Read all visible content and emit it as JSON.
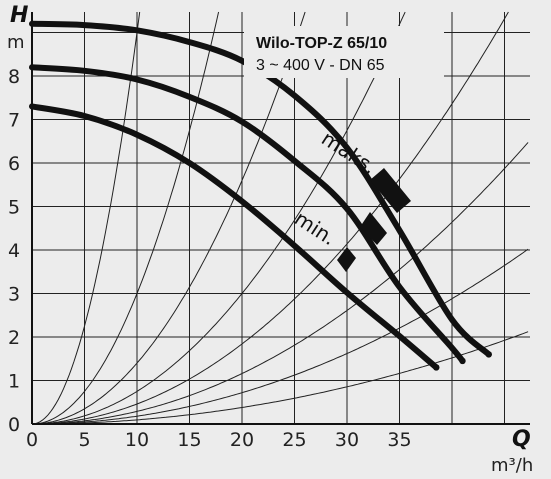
{
  "chart_data": {
    "type": "line",
    "title": "Wilo-TOP-Z 65/10",
    "subtitle": "3 ~ 400 V - DN 65",
    "ylabel": "H",
    "yunit": "m",
    "xlabel": "Q",
    "xunit": "m³/h",
    "xlim": [
      0,
      45
    ],
    "ylim": [
      0,
      9.5
    ],
    "xticks": [
      0,
      5,
      10,
      15,
      20,
      25,
      30,
      35
    ],
    "yticks": [
      0,
      1,
      2,
      3,
      4,
      5,
      6,
      7,
      8
    ],
    "grid": true,
    "series": [
      {
        "name": "maks.",
        "x": [
          0,
          5,
          10,
          15,
          20,
          25,
          30,
          35,
          40,
          43.5
        ],
        "y": [
          9.2,
          9.17,
          9.05,
          8.78,
          8.35,
          7.55,
          6.35,
          4.45,
          2.4,
          1.6
        ]
      },
      {
        "x": [
          0,
          5,
          10,
          15,
          20,
          25,
          30,
          35,
          40,
          41
        ],
        "y": [
          8.2,
          8.12,
          7.92,
          7.52,
          6.95,
          6.05,
          4.95,
          3.15,
          1.75,
          1.45
        ]
      },
      {
        "name": "min.",
        "x": [
          0,
          5,
          10,
          15,
          20,
          25,
          30,
          35,
          38.5
        ],
        "y": [
          7.3,
          7.08,
          6.65,
          6.0,
          5.12,
          4.1,
          3.02,
          2.02,
          1.3
        ]
      }
    ],
    "system_curves_k": [
      0.09,
      0.03,
      0.014,
      0.0075,
      0.0046,
      0.0029,
      0.0018,
      0.00095
    ]
  }
}
